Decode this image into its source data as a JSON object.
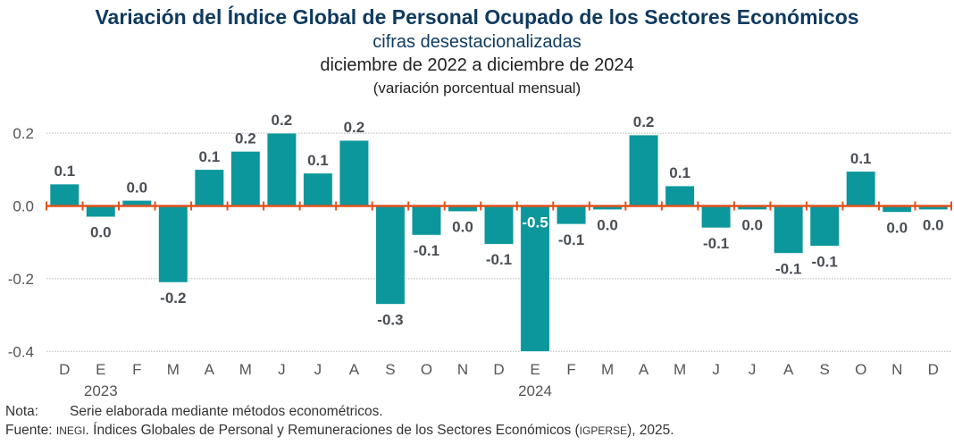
{
  "header": {
    "title": "Variación del Índice Global de Personal Ocupado de los Sectores Económicos",
    "subtitle": "cifras desestacionalizadas",
    "period": "diciembre de 2022 a diciembre de 2024",
    "unit": "(variación porcentual mensual)"
  },
  "colors": {
    "bar": "#0b979b",
    "axis": "#e0531f",
    "label": "#4a4f55",
    "grid": "#b5b5b5"
  },
  "chart_data": {
    "type": "bar",
    "title": "Variación del Índice Global de Personal Ocupado de los Sectores Económicos",
    "xlabel": "",
    "ylabel": "",
    "ylim": [
      -0.4,
      0.2
    ],
    "yticks": [
      0.2,
      0.0,
      -0.2,
      -0.4
    ],
    "ytick_labels": [
      "0.2",
      "0.0",
      "-0.2",
      "-0.4"
    ],
    "grid": true,
    "categories": [
      "D",
      "E",
      "F",
      "M",
      "A",
      "M",
      "J",
      "J",
      "A",
      "S",
      "O",
      "N",
      "D",
      "E",
      "F",
      "M",
      "A",
      "M",
      "J",
      "J",
      "A",
      "S",
      "O",
      "N",
      "D"
    ],
    "year_labels": [
      {
        "index": 1,
        "label": "2023"
      },
      {
        "index": 13,
        "label": "2024"
      }
    ],
    "values": [
      0.06,
      -0.03,
      0.015,
      -0.21,
      0.1,
      0.15,
      0.2,
      0.09,
      0.18,
      -0.27,
      -0.08,
      -0.015,
      -0.105,
      -0.5,
      -0.05,
      -0.01,
      0.195,
      0.055,
      -0.06,
      -0.01,
      -0.13,
      -0.11,
      0.095,
      -0.017,
      -0.01
    ],
    "data_labels": [
      "0.1",
      "0.0",
      "0.0",
      "-0.2",
      "0.1",
      "0.2",
      "0.2",
      "0.1",
      "0.2",
      "-0.3",
      "-0.1",
      "0.0",
      "-0.1",
      "-0.5",
      "-0.1",
      "0.0",
      "0.2",
      "0.1",
      "-0.1",
      "0.0",
      "-0.1",
      "-0.1",
      "0.1",
      "0.0",
      "0.0"
    ]
  },
  "footer": {
    "note_label": "Nota:",
    "note_text": "Serie elaborada mediante métodos econométricos.",
    "source_label": "Fuente:",
    "source_org": "INEGI",
    "source_text_1": ". Índices Globales de Personal y Remuneraciones de los Sectores Económicos (",
    "source_abbr": "IGPERSE",
    "source_text_2": "), 2025."
  }
}
